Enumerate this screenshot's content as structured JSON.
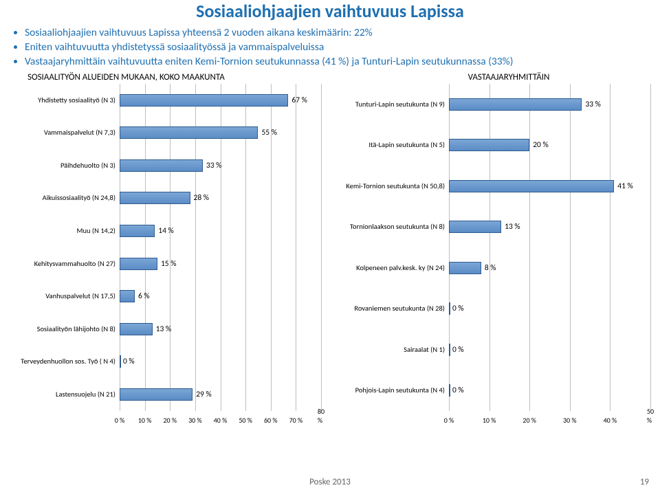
{
  "title": {
    "text": "Sosiaaliohjaajien vaihtuvuus Lapissa",
    "color": "#1f6fb0",
    "fontsize": 26
  },
  "bullets": [
    "Sosiaaliohjaajien vaihtuvuus Lapissa yhteensä 2 vuoden aikana keskimäärin: 22%",
    "Eniten vaihtuvuutta yhdistetyssä sosiaalityössä ja vammaispalveluissa",
    "Vastaajaryhmittäin vaihtuvuutta eniten Kemi-Tornion seutukunnassa (41 %)  ja Tunturi-Lapin seutukunnassa (33%)"
  ],
  "bullets_color": "#1f6fb0",
  "left_header": "SOSIAALITYÖN ALUEIDEN MUKAAN, KOKO MAAKUNTA",
  "right_header": "VASTAAJARYHMITTÄIN",
  "chart_style": {
    "grid_color": "#bfbfbf",
    "axis_fontsize": 10,
    "label_fontsize": 10.5,
    "value_fontsize": 11.5,
    "bar_border": "#2f5b8f"
  },
  "chart_left": {
    "xmax": 80,
    "xstep": 10,
    "rows": [
      {
        "label": "Yhdistetty sosiaalityö (N 3)",
        "value": 67
      },
      {
        "label": "Vammaispalvelut (N 7,3)",
        "value": 55
      },
      {
        "label": "Päihdehuolto (N 3)",
        "value": 33
      },
      {
        "label": "Aikuissosiaalityö (N 24,8)",
        "value": 28
      },
      {
        "label": "Muu (N 14,2)",
        "value": 14
      },
      {
        "label": "Kehitysvammahuolto (N 27)",
        "value": 15
      },
      {
        "label": "Vanhuspalvelut (N 17,5)",
        "value": 6
      },
      {
        "label": "Sosiaalityön lähijohto (N 8)",
        "value": 13
      },
      {
        "label": "Terveydenhuollon sos. Työ ( N 4)",
        "value": 0
      },
      {
        "label": "Lastensuojelu (N 21)",
        "value": 29
      }
    ]
  },
  "chart_right": {
    "xmax": 50,
    "xstep": 10,
    "rows": [
      {
        "label": "Tunturi-Lapin seutukunta (N 9)",
        "value": 33
      },
      {
        "label": "Itä-Lapin seutukunta (N 5)",
        "value": 20
      },
      {
        "label": "Kemi-Tornion seutukunta (N 50,8)",
        "value": 41
      },
      {
        "label": "Tornionlaakson seutukunta (N 8)",
        "value": 13
      },
      {
        "label": "Kolpeneen palv.kesk. ky (N 24)",
        "value": 8
      },
      {
        "label": "Rovaniemen seutukunta (N 28)",
        "value": 0
      },
      {
        "label": "Sairaalat (N 1)",
        "value": 0
      },
      {
        "label": "Pohjois-Lapin seutukunta (N 4)",
        "value": 0
      }
    ]
  },
  "footer": "Poske 2013",
  "pagenum": "19"
}
